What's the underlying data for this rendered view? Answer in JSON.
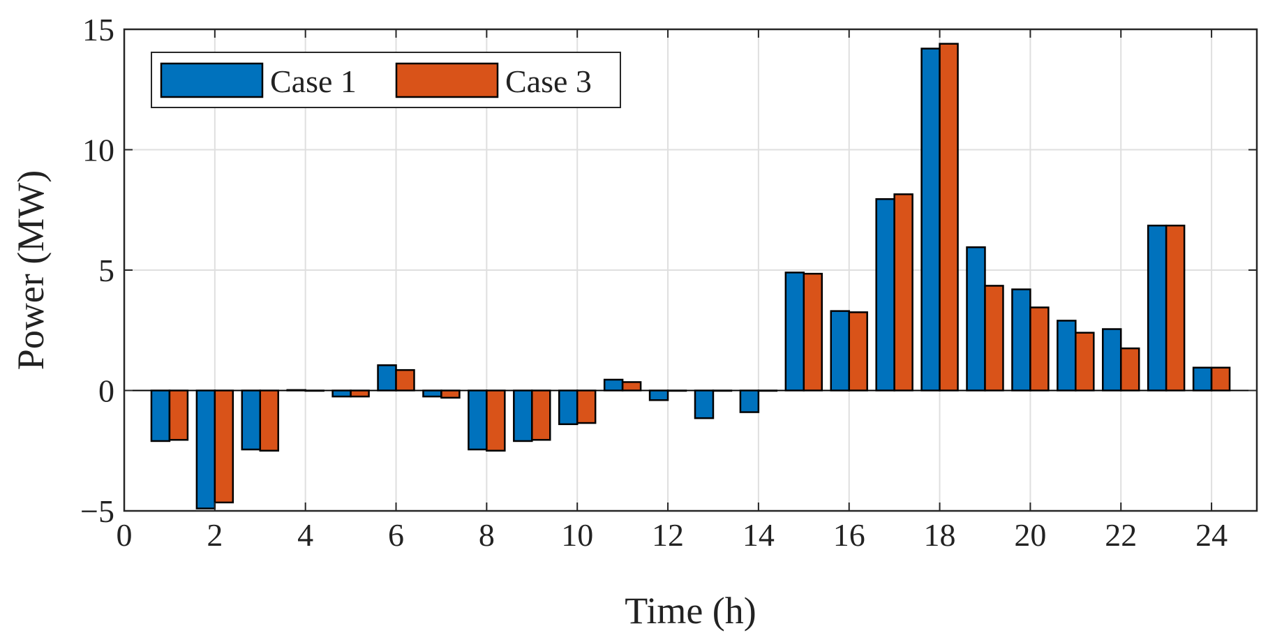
{
  "chart_data": {
    "type": "bar",
    "title": "",
    "xlabel": "Time (h)",
    "ylabel": "Power (MW)",
    "xlim": [
      0,
      25
    ],
    "ylim": [
      -5,
      15
    ],
    "xticks": [
      0,
      2,
      4,
      6,
      8,
      10,
      12,
      14,
      16,
      18,
      20,
      22,
      24
    ],
    "yticks": [
      -5,
      0,
      5,
      10,
      15
    ],
    "ytick_labels": [
      "−5",
      "0",
      "5",
      "10",
      "15"
    ],
    "grid": true,
    "legend_position": "top-left",
    "categories": [
      1,
      2,
      3,
      4,
      5,
      6,
      7,
      8,
      9,
      10,
      11,
      12,
      13,
      14,
      15,
      16,
      17,
      18,
      19,
      20,
      21,
      22,
      23,
      24
    ],
    "series": [
      {
        "name": "Case 1",
        "color": "#0072BD",
        "values": [
          -2.1,
          -4.9,
          -2.45,
          0.02,
          -0.25,
          1.05,
          -0.25,
          -2.45,
          -2.1,
          -1.4,
          0.45,
          -0.4,
          -1.15,
          -0.9,
          4.9,
          3.3,
          7.95,
          14.2,
          5.95,
          4.2,
          2.9,
          2.55,
          6.85,
          0.95
        ]
      },
      {
        "name": "Case 3",
        "color": "#D95319",
        "values": [
          -2.05,
          -4.65,
          -2.5,
          0.0,
          -0.25,
          0.85,
          -0.3,
          -2.5,
          -2.05,
          -1.35,
          0.35,
          0.0,
          0.0,
          0.0,
          4.85,
          3.25,
          8.15,
          14.4,
          4.35,
          3.45,
          2.4,
          1.75,
          6.85,
          0.95
        ]
      }
    ]
  }
}
